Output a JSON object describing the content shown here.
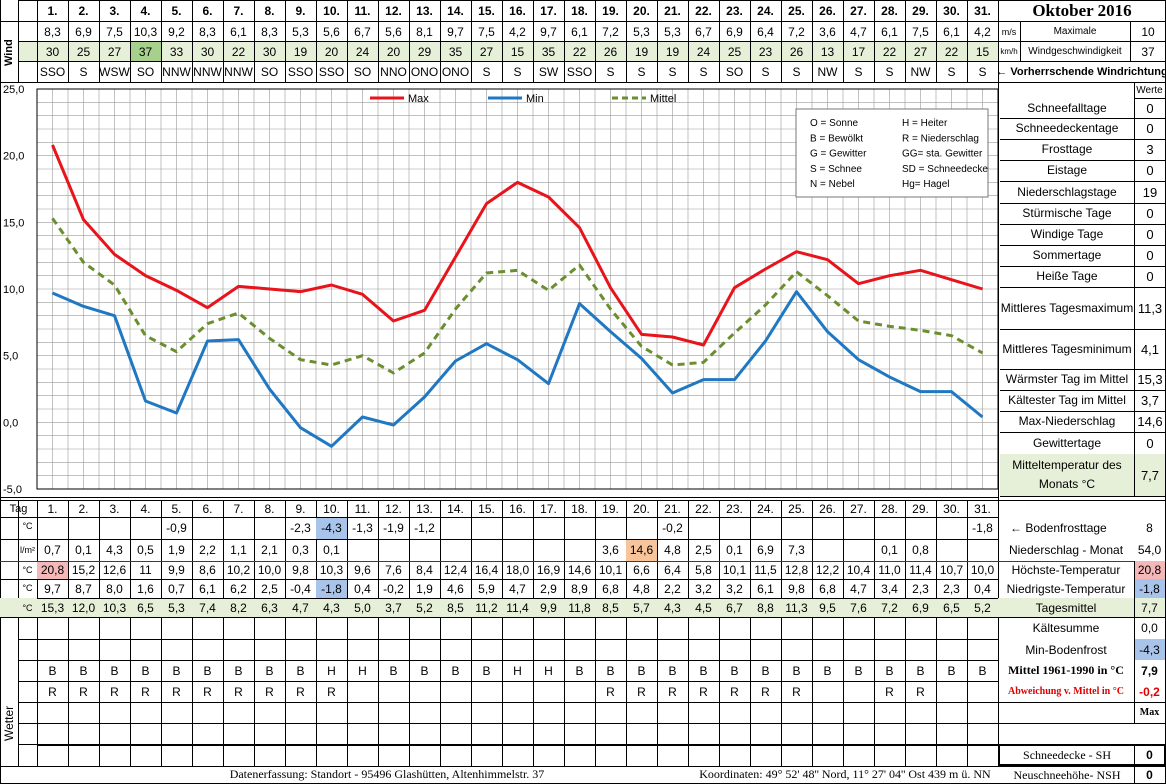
{
  "title": "Oktober 2016",
  "wind_label": "Wind",
  "wetter_label": "Wetter",
  "tag_label": "Tag",
  "unit_c": "°C",
  "unit_lm2": "l/m²",
  "unit_ms": "m/s",
  "unit_kmh": "km/h",
  "days": [
    "1.",
    "2.",
    "3.",
    "4.",
    "5.",
    "6.",
    "7.",
    "8.",
    "9.",
    "10.",
    "11.",
    "12.",
    "13.",
    "14.",
    "15.",
    "16.",
    "17.",
    "18.",
    "19.",
    "20.",
    "21.",
    "22.",
    "23.",
    "24.",
    "25.",
    "26.",
    "27.",
    "28.",
    "29.",
    "30.",
    "31."
  ],
  "wind_ms": [
    "8,3",
    "6,9",
    "7,5",
    "10,3",
    "9,2",
    "8,3",
    "6,1",
    "8,3",
    "5,3",
    "5,6",
    "6,7",
    "5,6",
    "8,1",
    "9,7",
    "7,5",
    "4,2",
    "9,7",
    "6,1",
    "7,2",
    "5,3",
    "5,3",
    "6,7",
    "6,9",
    "6,4",
    "7,2",
    "3,6",
    "4,7",
    "6,1",
    "7,5",
    "6,1",
    "4,2"
  ],
  "wind_kmh": [
    "30",
    "25",
    "27",
    "37",
    "33",
    "30",
    "22",
    "30",
    "19",
    "20",
    "24",
    "20",
    "29",
    "35",
    "27",
    "15",
    "35",
    "22",
    "26",
    "19",
    "19",
    "24",
    "25",
    "23",
    "26",
    "13",
    "17",
    "22",
    "27",
    "22",
    "15"
  ],
  "wind_dir": [
    "SSO",
    "S",
    "WSW",
    "SO",
    "NNW",
    "NNW",
    "NNW",
    "SO",
    "SSO",
    "SSO",
    "SO",
    "NNO",
    "ONO",
    "ONO",
    "S",
    "S",
    "SW",
    "SSO",
    "S",
    "S",
    "S",
    "S",
    "SO",
    "S",
    "S",
    "NW",
    "S",
    "S",
    "NW",
    "S",
    "S"
  ],
  "wind_max": {
    "label_ms": "Maximale",
    "label_kmh": "Windgeschwindigkeit",
    "value_ms": "10",
    "value_kmh": "37"
  },
  "wind_dir_note": "← Vorherrschende Windrichtung",
  "werte_label": "Werte",
  "legend_box": [
    [
      "O = Sonne",
      "H = Heiter"
    ],
    [
      "B = Bewölkt",
      "R = Niederschlag"
    ],
    [
      "G = Gewitter",
      "GG= sta. Gewitter"
    ],
    [
      "S = Schnee",
      "SD = Schneedecke"
    ],
    [
      "N = Nebel",
      "Hg= Hagel"
    ]
  ],
  "stats": [
    {
      "label": "Schneefalltage",
      "value": "0"
    },
    {
      "label": "Schneedeckentage",
      "value": "0"
    },
    {
      "label": "Frosttage",
      "value": "3"
    },
    {
      "label": "Eistage",
      "value": "0"
    },
    {
      "label": "Niederschlagstage",
      "value": "19"
    },
    {
      "label": "Stürmische Tage",
      "value": "0"
    },
    {
      "label": "Windige Tage",
      "value": "0"
    },
    {
      "label": "Sommertage",
      "value": "0"
    },
    {
      "label": "Heiße Tage",
      "value": "0"
    },
    {
      "label": "Mittleres Tagesmaximum",
      "value": "11,3"
    },
    {
      "label": "Mittleres Tagesminimum",
      "value": "4,1"
    },
    {
      "label": "Wärmster Tag im Mittel",
      "value": "15,3"
    },
    {
      "label": "Kältester Tag im Mittel",
      "value": "3,7"
    },
    {
      "label": "Max-Niederschlag",
      "value": "14,6"
    },
    {
      "label": "Gewittertage",
      "value": "0"
    },
    {
      "label": "Mitteltemperatur des Monats °C",
      "value": "7,7"
    }
  ],
  "bodenfrost": [
    "",
    "",
    "",
    "",
    "-0,9",
    "",
    "",
    "",
    "-2,3",
    "-4,3",
    "-1,3",
    "-1,9",
    "-1,2",
    "",
    "",
    "",
    "",
    "",
    "",
    "",
    "-0,2",
    "",
    "",
    "",
    "",
    "",
    "",
    "",
    "",
    "",
    "-1,8"
  ],
  "niederschlag": [
    "0,7",
    "0,1",
    "4,3",
    "0,5",
    "1,9",
    "2,2",
    "1,1",
    "2,1",
    "0,3",
    "0,1",
    "",
    "",
    "",
    "",
    "",
    "",
    "",
    "",
    "3,6",
    "14,6",
    "4,8",
    "2,5",
    "0,1",
    "6,9",
    "7,3",
    "",
    "",
    "0,1",
    "0,8",
    "",
    ""
  ],
  "hoechst": [
    "20,8",
    "15,2",
    "12,6",
    "11",
    "9,9",
    "8,6",
    "10,2",
    "10,0",
    "9,8",
    "10,3",
    "9,6",
    "7,6",
    "8,4",
    "12,4",
    "16,4",
    "18,0",
    "16,9",
    "14,6",
    "10,1",
    "6,6",
    "6,4",
    "5,8",
    "10,1",
    "11,5",
    "12,8",
    "12,2",
    "10,4",
    "11,0",
    "11,4",
    "10,7",
    "10,0"
  ],
  "niedrigst": [
    "9,7",
    "8,7",
    "8,0",
    "1,6",
    "0,7",
    "6,1",
    "6,2",
    "2,5",
    "-0,4",
    "-1,8",
    "0,4",
    "-0,2",
    "1,9",
    "4,6",
    "5,9",
    "4,7",
    "2,9",
    "8,9",
    "6,8",
    "4,8",
    "2,2",
    "3,2",
    "3,2",
    "6,1",
    "9,8",
    "6,8",
    "4,7",
    "3,4",
    "2,3",
    "2,3",
    "0,4"
  ],
  "mittel": [
    "15,3",
    "12,0",
    "10,3",
    "6,5",
    "5,3",
    "7,4",
    "8,2",
    "6,3",
    "4,7",
    "4,3",
    "5,0",
    "3,7",
    "5,2",
    "8,5",
    "11,2",
    "11,4",
    "9,9",
    "11,8",
    "8,5",
    "5,7",
    "4,3",
    "4,5",
    "6,7",
    "8,8",
    "11,3",
    "9,5",
    "7,6",
    "7,2",
    "6,9",
    "6,5",
    "5,2"
  ],
  "wetter1": [
    "B",
    "B",
    "B",
    "B",
    "B",
    "B",
    "B",
    "B",
    "B",
    "H",
    "H",
    "B",
    "B",
    "B",
    "B",
    "H",
    "H",
    "B",
    "B",
    "B",
    "B",
    "B",
    "B",
    "B",
    "B",
    "B",
    "B",
    "B",
    "B",
    "B",
    "B"
  ],
  "wetter2": [
    "R",
    "R",
    "R",
    "R",
    "R",
    "R",
    "R",
    "R",
    "R",
    "R",
    "",
    "",
    "",
    "",
    "",
    "",
    "",
    "",
    "R",
    "R",
    "R",
    "R",
    "R",
    "R",
    "R",
    "",
    "",
    "R",
    "R",
    "",
    ""
  ],
  "lower_side": [
    {
      "label": "← Bodenfrosttage",
      "value": "8"
    },
    {
      "label": "Niederschlag - Monat",
      "value": "54,0"
    },
    {
      "label": "Höchste-Temperatur",
      "value": "20,8"
    },
    {
      "label": "Niedrigste-Temperatur",
      "value": "-1,8"
    },
    {
      "label": "Tagesmittel",
      "value": "7,7"
    },
    {
      "label": "Kältesumme",
      "value": "0,0"
    },
    {
      "label": "Min-Bodenfrost",
      "value": "-4,3"
    },
    {
      "label": "Mittel 1961-1990 in °C",
      "value": "7,9"
    },
    {
      "label": "Abweichung v. Mittel in °C",
      "value": "-0,2"
    }
  ],
  "max_label": "Max",
  "snow": [
    {
      "label": "Schneedecke - SH",
      "value": "0"
    },
    {
      "label": "Neuschneehöhe- NSH",
      "value": "0"
    }
  ],
  "footer_left": "Datenerfassung: Standort - 95496 Glashütten, Altenhimmelstr. 37",
  "footer_right": "Koordinaten: 49° 52' 48'' Nord, 11° 27' 04'' Ost 439 m ü. NN",
  "colors": {
    "max": "#e8141b",
    "min": "#1f78c1",
    "mittel": "#6b8e2e",
    "highlight_green": "#e6efd8",
    "highlight_blue": "#a9c4ea",
    "highlight_orange": "#f8c49c",
    "highlight_red": "#f5b8b8",
    "accent_red": "#e00000"
  },
  "chart_data": {
    "type": "line",
    "x": [
      "1.",
      "2.",
      "3.",
      "4.",
      "5.",
      "6.",
      "7.",
      "8.",
      "9.",
      "10.",
      "11.",
      "12.",
      "13.",
      "14.",
      "15.",
      "16.",
      "17.",
      "18.",
      "19.",
      "20.",
      "21.",
      "22.",
      "23.",
      "24.",
      "25.",
      "26.",
      "27.",
      "28.",
      "29.",
      "30.",
      "31."
    ],
    "series": [
      {
        "name": "Max",
        "values": [
          20.8,
          15.2,
          12.6,
          11.0,
          9.9,
          8.6,
          10.2,
          10.0,
          9.8,
          10.3,
          9.6,
          7.6,
          8.4,
          12.4,
          16.4,
          18.0,
          16.9,
          14.6,
          10.1,
          6.6,
          6.4,
          5.8,
          10.1,
          11.5,
          12.8,
          12.2,
          10.4,
          11.0,
          11.4,
          10.7,
          10.0
        ]
      },
      {
        "name": "Min",
        "values": [
          9.7,
          8.7,
          8.0,
          1.6,
          0.7,
          6.1,
          6.2,
          2.5,
          -0.4,
          -1.8,
          0.4,
          -0.2,
          1.9,
          4.6,
          5.9,
          4.7,
          2.9,
          8.9,
          6.8,
          4.8,
          2.2,
          3.2,
          3.2,
          6.1,
          9.8,
          6.8,
          4.7,
          3.4,
          2.3,
          2.3,
          0.4
        ]
      },
      {
        "name": "Mittel",
        "values": [
          15.3,
          12.0,
          10.3,
          6.5,
          5.3,
          7.4,
          8.2,
          6.3,
          4.7,
          4.3,
          5.0,
          3.7,
          5.2,
          8.5,
          11.2,
          11.4,
          9.9,
          11.8,
          8.5,
          5.7,
          4.3,
          4.5,
          6.7,
          8.8,
          11.3,
          9.5,
          7.6,
          7.2,
          6.9,
          6.5,
          5.2
        ]
      }
    ],
    "ylim": [
      -5,
      25
    ],
    "yticks": [
      "25,0",
      "20,0",
      "15,0",
      "10,0",
      "5,0",
      "0,0",
      "-5,0"
    ],
    "grid": true,
    "legend": "top"
  }
}
